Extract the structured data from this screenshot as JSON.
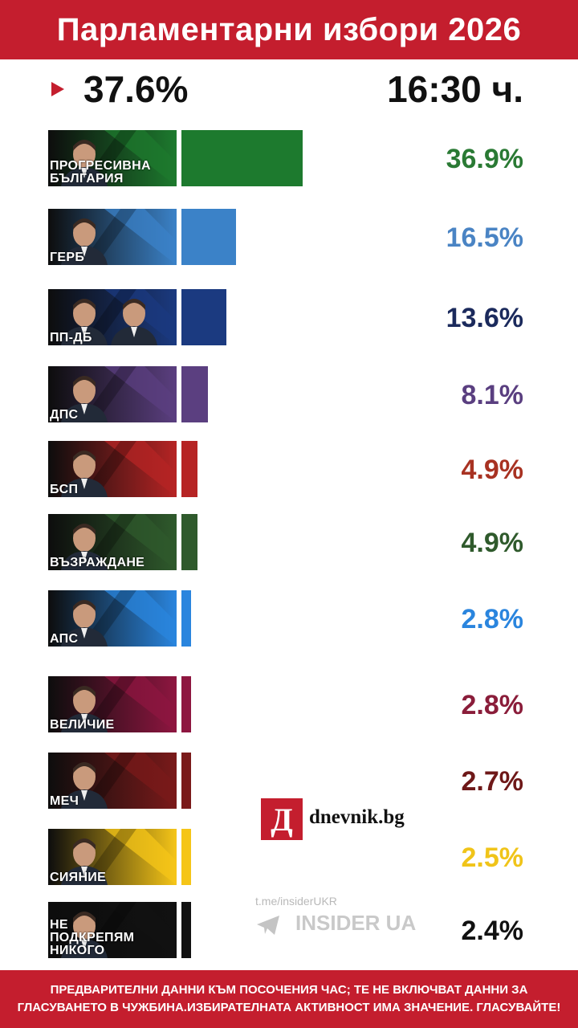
{
  "header": {
    "title": "Парламентарни избори 2026"
  },
  "turnout": {
    "value": "37.6%",
    "time": "16:30 ч."
  },
  "chart_data": {
    "type": "bar",
    "orientation": "horizontal",
    "title": "Парламентарни избори 2026",
    "categories": [
      "ПРОГРЕСИВНА БЪЛГАРИЯ",
      "ГЕРБ",
      "ПП-ДБ",
      "ДПС",
      "БСП",
      "ВЪЗРАЖДАНЕ",
      "АПС",
      "ВЕЛИЧИЕ",
      "МЕЧ",
      "СИЯНИЕ",
      "НЕ ПОДКРЕПЯМ НИКОГО"
    ],
    "values": [
      36.9,
      16.5,
      13.6,
      8.1,
      4.9,
      4.9,
      2.8,
      2.8,
      2.7,
      2.5,
      2.4
    ],
    "value_labels": [
      "36.9%",
      "16.5%",
      "13.6%",
      "8.1%",
      "4.9%",
      "4.9%",
      "2.8%",
      "2.8%",
      "2.7%",
      "2.5%",
      "2.4%"
    ],
    "colors": [
      "#1d7a2e",
      "#3b82c8",
      "#1b3a80",
      "#5b3f80",
      "#b62424",
      "#2f5a2c",
      "#2a85de",
      "#8e1640",
      "#7a1a1a",
      "#f5c518",
      "#111111"
    ],
    "label_colors": [
      "#2a7a34",
      "#4a84c4",
      "#1b2a5c",
      "#5a3f80",
      "#a83222",
      "#2f5a2c",
      "#2a85de",
      "#8a1d3a",
      "#6e1818",
      "#f0c419",
      "#111111"
    ],
    "grid": false
  },
  "watermark": {
    "link": "t.me/insiderUKR",
    "brand": "INSIDER UA"
  },
  "logo": {
    "letter": "Д",
    "text": "dnevnik.bg"
  },
  "footer": {
    "note": "ПРЕДВАРИТЕЛНИ ДАННИ КЪМ ПОСОЧЕНИЯ ЧАС; ТЕ НЕ ВКЛЮЧВАТ ДАННИ ЗА ГЛАСУВАНЕТО В ЧУЖБИНА.ИЗБИРАТЕЛНАТА АКТИВНОСТ ИМА ЗНАЧЕНИЕ. ГЛАСУВАЙТЕ!"
  }
}
